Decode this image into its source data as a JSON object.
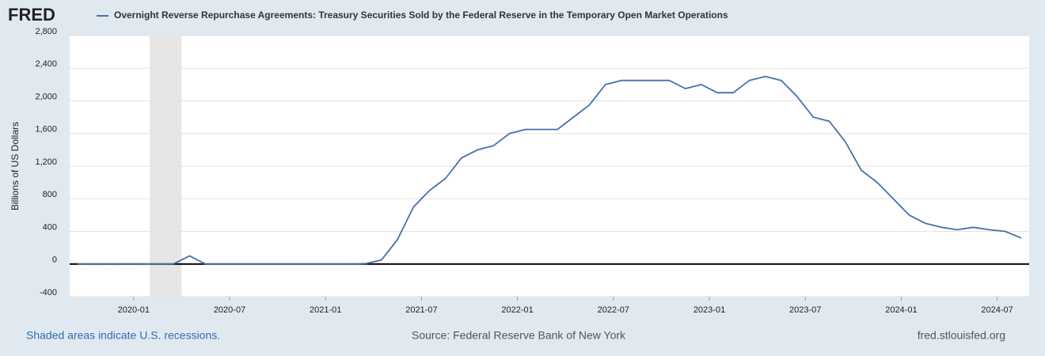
{
  "chart_data": {
    "type": "line",
    "logo": "FRED",
    "x": [
      "2019-09",
      "2019-10",
      "2019-11",
      "2019-12",
      "2020-01",
      "2020-02",
      "2020-03",
      "2020-04",
      "2020-05",
      "2020-06",
      "2020-07",
      "2020-08",
      "2020-09",
      "2020-10",
      "2020-11",
      "2020-12",
      "2021-01",
      "2021-02",
      "2021-03",
      "2021-04",
      "2021-05",
      "2021-06",
      "2021-07",
      "2021-08",
      "2021-09",
      "2021-10",
      "2021-11",
      "2021-12",
      "2022-01",
      "2022-02",
      "2022-03",
      "2022-04",
      "2022-05",
      "2022-06",
      "2022-07",
      "2022-08",
      "2022-09",
      "2022-10",
      "2022-11",
      "2022-12",
      "2023-01",
      "2023-02",
      "2023-03",
      "2023-04",
      "2023-05",
      "2023-06",
      "2023-07",
      "2023-08",
      "2023-09",
      "2023-10",
      "2023-11",
      "2023-12",
      "2024-01",
      "2024-02",
      "2024-03",
      "2024-04",
      "2024-05",
      "2024-06",
      "2024-07",
      "2024-08"
    ],
    "series": [
      {
        "name": "Overnight Reverse Repurchase Agreements: Treasury Securities Sold by the Federal Reserve in the Temporary Open Market Operations",
        "color": "#4572a7",
        "values": [
          0,
          1,
          0,
          2,
          1,
          0,
          3,
          100,
          0,
          0,
          0,
          0,
          0,
          0,
          0,
          0,
          0,
          0,
          5,
          50,
          300,
          700,
          900,
          1050,
          1300,
          1400,
          1450,
          1600,
          1650,
          1650,
          1650,
          1800,
          1950,
          2200,
          2250,
          2250,
          2250,
          2250,
          2150,
          2200,
          2100,
          2100,
          2250,
          2300,
          2250,
          2050,
          1800,
          1750,
          1500,
          1150,
          1000,
          800,
          600,
          500,
          450,
          420,
          450,
          420,
          400,
          320
        ]
      }
    ],
    "ylim": [
      -400,
      2800
    ],
    "yticks": [
      -400,
      0,
      400,
      800,
      {
        "value": 1200,
        "label": "1,200"
      },
      {
        "value": 1600,
        "label": "1,600"
      },
      {
        "value": 2000,
        "label": "2,000"
      },
      {
        "value": 2400,
        "label": "2,400"
      },
      {
        "value": 2800,
        "label": "2,800"
      }
    ],
    "xticks": [
      "2020-01",
      "2020-07",
      "2021-01",
      "2021-07",
      "2022-01",
      "2022-07",
      "2023-01",
      "2023-07",
      "2024-01",
      "2024-07"
    ],
    "ylabel": "Billions of US Dollars",
    "grid": true,
    "recessions": [
      {
        "start": "2020-02",
        "end": "2020-04"
      }
    ],
    "recession_note": "Shaded areas indicate U.S. recessions.",
    "source": "Source: Federal Reserve Bank of New York",
    "site": "fred.stlouisfed.org"
  }
}
